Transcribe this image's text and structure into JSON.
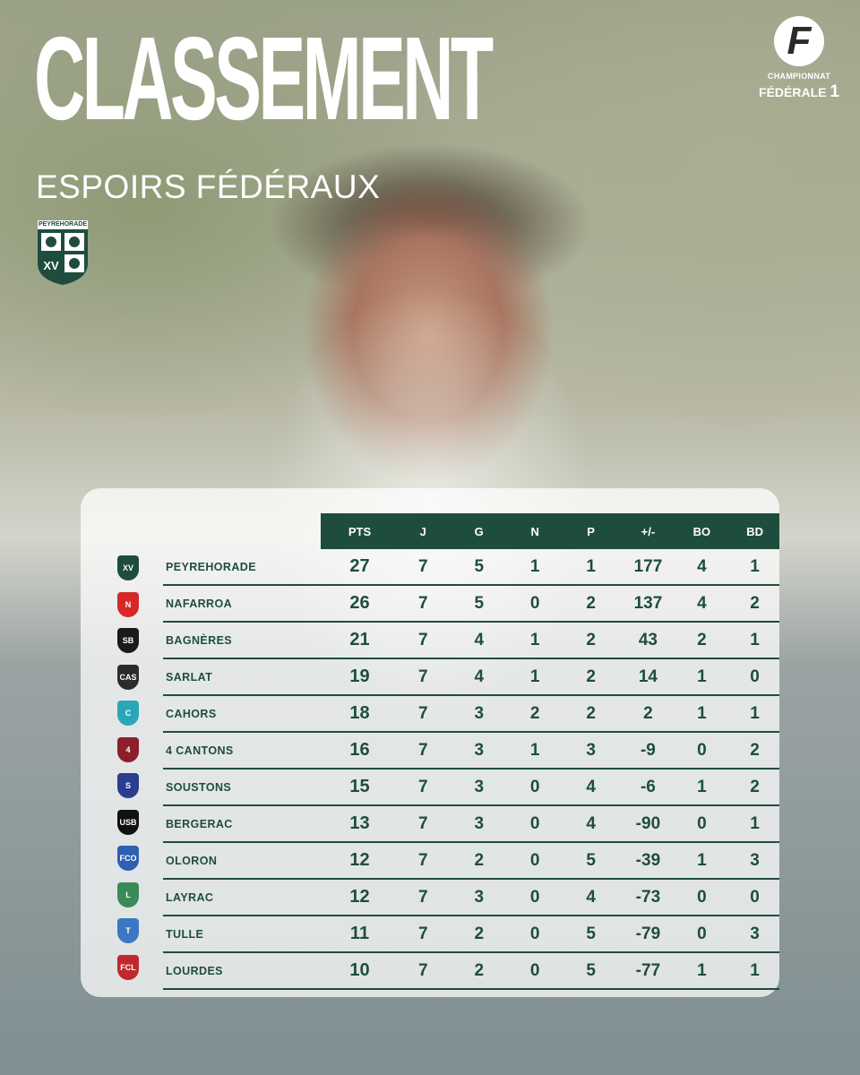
{
  "title": "CLASSEMENT",
  "subtitle": "ESPOIRS FÉDÉRAUX",
  "club_crest": {
    "name": "PEYREHORADE",
    "motto": "XV"
  },
  "league_logo": {
    "letter": "F",
    "line1": "CHAMPIONNAT",
    "line2": "FÉDÉRALE",
    "number": "1"
  },
  "colors": {
    "accent": "#1e4d3e",
    "panel": "#ffffff"
  },
  "table": {
    "headers": [
      "PTS",
      "J",
      "G",
      "N",
      "P",
      "+/-",
      "BO",
      "BD"
    ],
    "rows": [
      {
        "team": "PEYREHORADE",
        "logo_color": "#1e4d3e",
        "logo_text": "XV",
        "pts": "27",
        "j": "7",
        "g": "5",
        "n": "1",
        "p": "1",
        "diff": "177",
        "bo": "4",
        "bd": "1"
      },
      {
        "team": "NAFARROA",
        "logo_color": "#d62828",
        "logo_text": "N",
        "pts": "26",
        "j": "7",
        "g": "5",
        "n": "0",
        "p": "2",
        "diff": "137",
        "bo": "4",
        "bd": "2"
      },
      {
        "team": "BAGNÈRES",
        "logo_color": "#1a1a1a",
        "logo_text": "SB",
        "pts": "21",
        "j": "7",
        "g": "4",
        "n": "1",
        "p": "2",
        "diff": "43",
        "bo": "2",
        "bd": "1"
      },
      {
        "team": "SARLAT",
        "logo_color": "#2b2b2b",
        "logo_text": "CAS",
        "pts": "19",
        "j": "7",
        "g": "4",
        "n": "1",
        "p": "2",
        "diff": "14",
        "bo": "1",
        "bd": "0"
      },
      {
        "team": "CAHORS",
        "logo_color": "#2aa6b8",
        "logo_text": "C",
        "pts": "18",
        "j": "7",
        "g": "3",
        "n": "2",
        "p": "2",
        "diff": "2",
        "bo": "1",
        "bd": "1"
      },
      {
        "team": "4 CANTONS",
        "logo_color": "#8b1f2b",
        "logo_text": "4",
        "pts": "16",
        "j": "7",
        "g": "3",
        "n": "1",
        "p": "3",
        "diff": "-9",
        "bo": "0",
        "bd": "2"
      },
      {
        "team": "SOUSTONS",
        "logo_color": "#2a3d8f",
        "logo_text": "S",
        "pts": "15",
        "j": "7",
        "g": "3",
        "n": "0",
        "p": "4",
        "diff": "-6",
        "bo": "1",
        "bd": "2"
      },
      {
        "team": "BERGERAC",
        "logo_color": "#111111",
        "logo_text": "USB",
        "pts": "13",
        "j": "7",
        "g": "3",
        "n": "0",
        "p": "4",
        "diff": "-90",
        "bo": "0",
        "bd": "1"
      },
      {
        "team": "OLORON",
        "logo_color": "#2f5fb3",
        "logo_text": "FCO",
        "pts": "12",
        "j": "7",
        "g": "2",
        "n": "0",
        "p": "5",
        "diff": "-39",
        "bo": "1",
        "bd": "3"
      },
      {
        "team": "LAYRAC",
        "logo_color": "#3b8a5a",
        "logo_text": "L",
        "pts": "12",
        "j": "7",
        "g": "3",
        "n": "0",
        "p": "4",
        "diff": "-73",
        "bo": "0",
        "bd": "0"
      },
      {
        "team": "TULLE",
        "logo_color": "#3b78c4",
        "logo_text": "T",
        "pts": "11",
        "j": "7",
        "g": "2",
        "n": "0",
        "p": "5",
        "diff": "-79",
        "bo": "0",
        "bd": "3"
      },
      {
        "team": "LOURDES",
        "logo_color": "#c0282d",
        "logo_text": "FCL",
        "pts": "10",
        "j": "7",
        "g": "2",
        "n": "0",
        "p": "5",
        "diff": "-77",
        "bo": "1",
        "bd": "1"
      }
    ]
  }
}
